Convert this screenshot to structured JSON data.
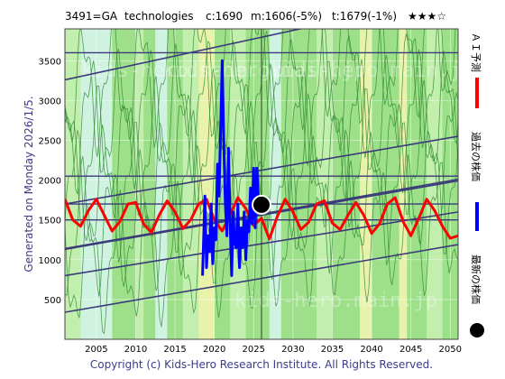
{
  "header": {
    "code": "3491=GA",
    "sector": "technologies",
    "close": "c:1690",
    "ma": "m:1606(-5%)",
    "target": "t:1679(-1%)",
    "stars": "★★★☆"
  },
  "side_text": "Generated on Monday 2026/1/5.",
  "legend": {
    "ai": "ＡＩ予測",
    "past": "過去の株価",
    "latest": "最新の株価"
  },
  "copyright": "Copyright (c) Kids-Hero Research Institute. All Rights Reserved.",
  "watermark": "kids-hero.main.jp",
  "colors": {
    "green_bg": "#9ee08a",
    "light_green": "#c8f0b4",
    "pale_cyan": "#d8f4f0",
    "yellow": "#f4f4b0",
    "ai_line": "#ff0000",
    "past_line": "#0000ff",
    "channel": "#3a3a7a",
    "thin_green": "#2e8b2e"
  },
  "chart_data": {
    "type": "line",
    "xlim": [
      2001,
      2051
    ],
    "ylim": [
      0,
      3900
    ],
    "x_ticks": [
      2005,
      2010,
      2015,
      2020,
      2025,
      2030,
      2035,
      2040,
      2045,
      2050
    ],
    "y_ticks": [
      500,
      1000,
      1500,
      2000,
      2500,
      3000,
      3500
    ],
    "latest_point": {
      "x": 2026.0,
      "y": 1690
    },
    "horizontal_levels": [
      1500,
      1700,
      2050,
      3600
    ],
    "channels": [
      {
        "x": [
          2001,
          2051
        ],
        "y": [
          3260,
          4330
        ]
      },
      {
        "x": [
          2001,
          2051
        ],
        "y": [
          1700,
          2550
        ]
      },
      {
        "x": [
          2001,
          2051
        ],
        "y": [
          1140,
          2010
        ]
      },
      {
        "x": [
          2001,
          2051
        ],
        "y": [
          1130,
          1990
        ]
      },
      {
        "x": [
          2001,
          2051
        ],
        "y": [
          800,
          1600
        ]
      },
      {
        "x": [
          2001,
          2051
        ],
        "y": [
          340,
          1190
        ]
      }
    ],
    "series": [
      {
        "name": "ＡＩ予測",
        "x": [
          2001,
          2002,
          2003,
          2004,
          2005,
          2006,
          2007,
          2008,
          2009,
          2010,
          2011,
          2012,
          2013,
          2014,
          2015,
          2016,
          2017,
          2018,
          2019,
          2020,
          2021,
          2022,
          2023,
          2024,
          2025,
          2026,
          2027,
          2028,
          2029,
          2030,
          2031,
          2032,
          2033,
          2034,
          2035,
          2036,
          2037,
          2038,
          2039,
          2040,
          2041,
          2042,
          2043,
          2044,
          2045,
          2046,
          2047,
          2048,
          2049,
          2050,
          2051
        ],
        "y": [
          1760,
          1500,
          1420,
          1620,
          1760,
          1560,
          1360,
          1480,
          1700,
          1720,
          1450,
          1340,
          1560,
          1740,
          1600,
          1390,
          1500,
          1700,
          1760,
          1500,
          1360,
          1560,
          1780,
          1640,
          1430,
          1520,
          1260,
          1540,
          1760,
          1600,
          1380,
          1470,
          1700,
          1740,
          1460,
          1380,
          1560,
          1720,
          1560,
          1330,
          1450,
          1700,
          1780,
          1480,
          1300,
          1520,
          1760,
          1620,
          1420,
          1270,
          1300
        ]
      },
      {
        "name": "過去の株価",
        "x": [
          2018.5,
          2018.8,
          2019.0,
          2019.2,
          2019.4,
          2019.6,
          2019.8,
          2020.0,
          2020.2,
          2020.4,
          2020.6,
          2020.8,
          2021.0,
          2021.2,
          2021.4,
          2021.6,
          2021.8,
          2022.0,
          2022.2,
          2022.4,
          2022.6,
          2022.8,
          2023.0,
          2023.2,
          2023.4,
          2023.6,
          2023.8,
          2024.0,
          2024.2,
          2024.4,
          2024.6,
          2024.8,
          2025.0,
          2025.2,
          2025.4,
          2025.6,
          2025.8,
          2026.0
        ],
        "y": [
          800,
          1800,
          900,
          1300,
          1100,
          1700,
          950,
          1400,
          1250,
          2200,
          1800,
          2650,
          3500,
          2500,
          1700,
          1300,
          2400,
          1500,
          800,
          1600,
          1200,
          1150,
          1700,
          900,
          1400,
          1150,
          1600,
          1000,
          1500,
          1350,
          1900,
          1450,
          2150,
          1400,
          2150,
          1800,
          1650,
          1690
        ]
      }
    ]
  }
}
